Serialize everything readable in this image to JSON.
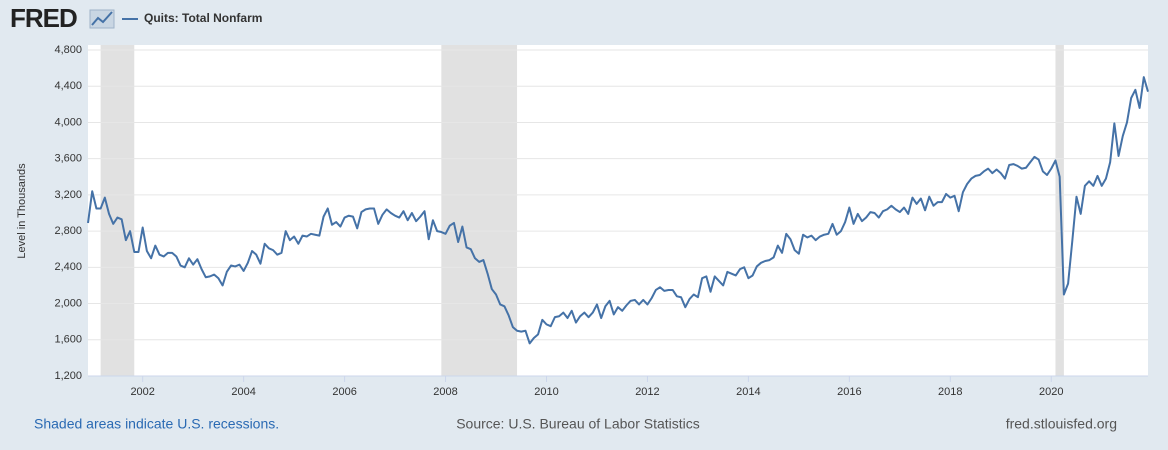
{
  "header": {
    "logo": "FRED"
  },
  "footer": {
    "note": "Shaded areas indicate U.S. recessions.",
    "source": "Source: U.S. Bureau of Labor Statistics",
    "site": "fred.stlouisfed.org"
  },
  "chart_data": {
    "type": "line",
    "y_label": "Level in Thousands",
    "x": [
      "2000-12",
      "2001-01",
      "2001-02",
      "2001-03",
      "2001-04",
      "2001-05",
      "2001-06",
      "2001-07",
      "2001-08",
      "2001-09",
      "2001-10",
      "2001-11",
      "2001-12",
      "2002-01",
      "2002-02",
      "2002-03",
      "2002-04",
      "2002-05",
      "2002-06",
      "2002-07",
      "2002-08",
      "2002-09",
      "2002-10",
      "2002-11",
      "2002-12",
      "2003-01",
      "2003-02",
      "2003-03",
      "2003-04",
      "2003-05",
      "2003-06",
      "2003-07",
      "2003-08",
      "2003-09",
      "2003-10",
      "2003-11",
      "2003-12",
      "2004-01",
      "2004-02",
      "2004-03",
      "2004-04",
      "2004-05",
      "2004-06",
      "2004-07",
      "2004-08",
      "2004-09",
      "2004-10",
      "2004-11",
      "2004-12",
      "2005-01",
      "2005-02",
      "2005-03",
      "2005-04",
      "2005-05",
      "2005-06",
      "2005-07",
      "2005-08",
      "2005-09",
      "2005-10",
      "2005-11",
      "2005-12",
      "2006-01",
      "2006-02",
      "2006-03",
      "2006-04",
      "2006-05",
      "2006-06",
      "2006-07",
      "2006-08",
      "2006-09",
      "2006-10",
      "2006-11",
      "2006-12",
      "2007-01",
      "2007-02",
      "2007-03",
      "2007-04",
      "2007-05",
      "2007-06",
      "2007-07",
      "2007-08",
      "2007-09",
      "2007-10",
      "2007-11",
      "2007-12",
      "2008-01",
      "2008-02",
      "2008-03",
      "2008-04",
      "2008-05",
      "2008-06",
      "2008-07",
      "2008-08",
      "2008-09",
      "2008-10",
      "2008-11",
      "2008-12",
      "2009-01",
      "2009-02",
      "2009-03",
      "2009-04",
      "2009-05",
      "2009-06",
      "2009-07",
      "2009-08",
      "2009-09",
      "2009-10",
      "2009-11",
      "2009-12",
      "2010-01",
      "2010-02",
      "2010-03",
      "2010-04",
      "2010-05",
      "2010-06",
      "2010-07",
      "2010-08",
      "2010-09",
      "2010-10",
      "2010-11",
      "2010-12",
      "2011-01",
      "2011-02",
      "2011-03",
      "2011-04",
      "2011-05",
      "2011-06",
      "2011-07",
      "2011-08",
      "2011-09",
      "2011-10",
      "2011-11",
      "2011-12",
      "2012-01",
      "2012-02",
      "2012-03",
      "2012-04",
      "2012-05",
      "2012-06",
      "2012-07",
      "2012-08",
      "2012-09",
      "2012-10",
      "2012-11",
      "2012-12",
      "2013-01",
      "2013-02",
      "2013-03",
      "2013-04",
      "2013-05",
      "2013-06",
      "2013-07",
      "2013-08",
      "2013-09",
      "2013-10",
      "2013-11",
      "2013-12",
      "2014-01",
      "2014-02",
      "2014-03",
      "2014-04",
      "2014-05",
      "2014-06",
      "2014-07",
      "2014-08",
      "2014-09",
      "2014-10",
      "2014-11",
      "2014-12",
      "2015-01",
      "2015-02",
      "2015-03",
      "2015-04",
      "2015-05",
      "2015-06",
      "2015-07",
      "2015-08",
      "2015-09",
      "2015-10",
      "2015-11",
      "2015-12",
      "2016-01",
      "2016-02",
      "2016-03",
      "2016-04",
      "2016-05",
      "2016-06",
      "2016-07",
      "2016-08",
      "2016-09",
      "2016-10",
      "2016-11",
      "2016-12",
      "2017-01",
      "2017-02",
      "2017-03",
      "2017-04",
      "2017-05",
      "2017-06",
      "2017-07",
      "2017-08",
      "2017-09",
      "2017-10",
      "2017-11",
      "2017-12",
      "2018-01",
      "2018-02",
      "2018-03",
      "2018-04",
      "2018-05",
      "2018-06",
      "2018-07",
      "2018-08",
      "2018-09",
      "2018-10",
      "2018-11",
      "2018-12",
      "2019-01",
      "2019-02",
      "2019-03",
      "2019-04",
      "2019-05",
      "2019-06",
      "2019-07",
      "2019-08",
      "2019-09",
      "2019-10",
      "2019-11",
      "2019-12",
      "2020-01",
      "2020-02",
      "2020-03",
      "2020-04",
      "2020-05",
      "2020-06",
      "2020-07",
      "2020-08",
      "2020-09",
      "2020-10",
      "2020-11",
      "2020-12",
      "2021-01",
      "2021-02",
      "2021-03",
      "2021-04",
      "2021-05",
      "2021-06",
      "2021-07",
      "2021-08",
      "2021-09",
      "2021-10",
      "2021-11",
      "2021-12"
    ],
    "series": [
      {
        "name": "Quits: Total Nonfarm",
        "color": "#4572a7",
        "values": [
          2890,
          3240,
          3050,
          3050,
          3170,
          2990,
          2880,
          2950,
          2930,
          2700,
          2800,
          2570,
          2570,
          2840,
          2580,
          2500,
          2640,
          2540,
          2520,
          2560,
          2560,
          2520,
          2420,
          2400,
          2500,
          2430,
          2490,
          2380,
          2290,
          2300,
          2320,
          2280,
          2200,
          2350,
          2420,
          2410,
          2430,
          2360,
          2450,
          2580,
          2540,
          2440,
          2660,
          2610,
          2590,
          2540,
          2560,
          2800,
          2700,
          2740,
          2660,
          2750,
          2740,
          2770,
          2760,
          2750,
          2960,
          3050,
          2870,
          2900,
          2850,
          2950,
          2970,
          2960,
          2830,
          3010,
          3040,
          3050,
          3050,
          2880,
          2980,
          3040,
          3000,
          2970,
          2950,
          3020,
          2920,
          3000,
          2910,
          2960,
          3020,
          2710,
          2920,
          2800,
          2790,
          2770,
          2860,
          2890,
          2680,
          2850,
          2620,
          2600,
          2500,
          2460,
          2480,
          2330,
          2160,
          2100,
          1990,
          1970,
          1870,
          1740,
          1700,
          1690,
          1700,
          1560,
          1620,
          1660,
          1820,
          1770,
          1750,
          1850,
          1860,
          1900,
          1840,
          1920,
          1790,
          1860,
          1900,
          1850,
          1900,
          1990,
          1840,
          1970,
          2030,
          1880,
          1960,
          1920,
          1980,
          2030,
          2040,
          1990,
          2040,
          1990,
          2060,
          2150,
          2180,
          2140,
          2150,
          2150,
          2080,
          2070,
          1960,
          2050,
          2100,
          2070,
          2280,
          2300,
          2130,
          2300,
          2250,
          2200,
          2350,
          2330,
          2310,
          2380,
          2400,
          2280,
          2310,
          2410,
          2450,
          2470,
          2480,
          2510,
          2640,
          2560,
          2770,
          2710,
          2590,
          2550,
          2760,
          2730,
          2750,
          2700,
          2740,
          2760,
          2770,
          2880,
          2760,
          2800,
          2900,
          3060,
          2880,
          2990,
          2910,
          2950,
          3010,
          3000,
          2950,
          3020,
          3040,
          3080,
          3040,
          3010,
          3060,
          2990,
          3170,
          3100,
          3160,
          3030,
          3180,
          3080,
          3120,
          3120,
          3210,
          3170,
          3190,
          3020,
          3230,
          3320,
          3380,
          3410,
          3420,
          3460,
          3490,
          3440,
          3480,
          3440,
          3380,
          3530,
          3540,
          3520,
          3490,
          3500,
          3560,
          3620,
          3590,
          3460,
          3420,
          3490,
          3580,
          3400,
          2100,
          2220,
          2690,
          3180,
          2990,
          3300,
          3350,
          3300,
          3410,
          3300,
          3380,
          3560,
          3990,
          3630,
          3850,
          4000,
          4270,
          4360,
          4160,
          4500,
          4340
        ]
      }
    ],
    "recessions": [
      {
        "start": "2001-03",
        "end": "2001-11"
      },
      {
        "start": "2007-12",
        "end": "2009-06"
      },
      {
        "start": "2020-02",
        "end": "2020-04"
      }
    ],
    "recession_color": "#e1e1e1",
    "xlim": [
      "2000-12",
      "2021-12"
    ],
    "xticks": [
      {
        "value": "2002-01",
        "label": "2002"
      },
      {
        "value": "2004-01",
        "label": "2004"
      },
      {
        "value": "2006-01",
        "label": "2006"
      },
      {
        "value": "2008-01",
        "label": "2008"
      },
      {
        "value": "2010-01",
        "label": "2010"
      },
      {
        "value": "2012-01",
        "label": "2012"
      },
      {
        "value": "2014-01",
        "label": "2014"
      },
      {
        "value": "2016-01",
        "label": "2016"
      },
      {
        "value": "2018-01",
        "label": "2018"
      },
      {
        "value": "2020-01",
        "label": "2020"
      }
    ],
    "ylim": [
      1200,
      4800
    ],
    "yticks": [
      {
        "value": 1200,
        "label": "1,200"
      },
      {
        "value": 1600,
        "label": "1,600"
      },
      {
        "value": 2000,
        "label": "2,000"
      },
      {
        "value": 2400,
        "label": "2,400"
      },
      {
        "value": 2800,
        "label": "2,800"
      },
      {
        "value": 3200,
        "label": "3,200"
      },
      {
        "value": 3600,
        "label": "3,600"
      },
      {
        "value": 4000,
        "label": "4,000"
      },
      {
        "value": 4400,
        "label": "4,400"
      },
      {
        "value": 4800,
        "label": "4,800"
      }
    ],
    "grid": true
  }
}
